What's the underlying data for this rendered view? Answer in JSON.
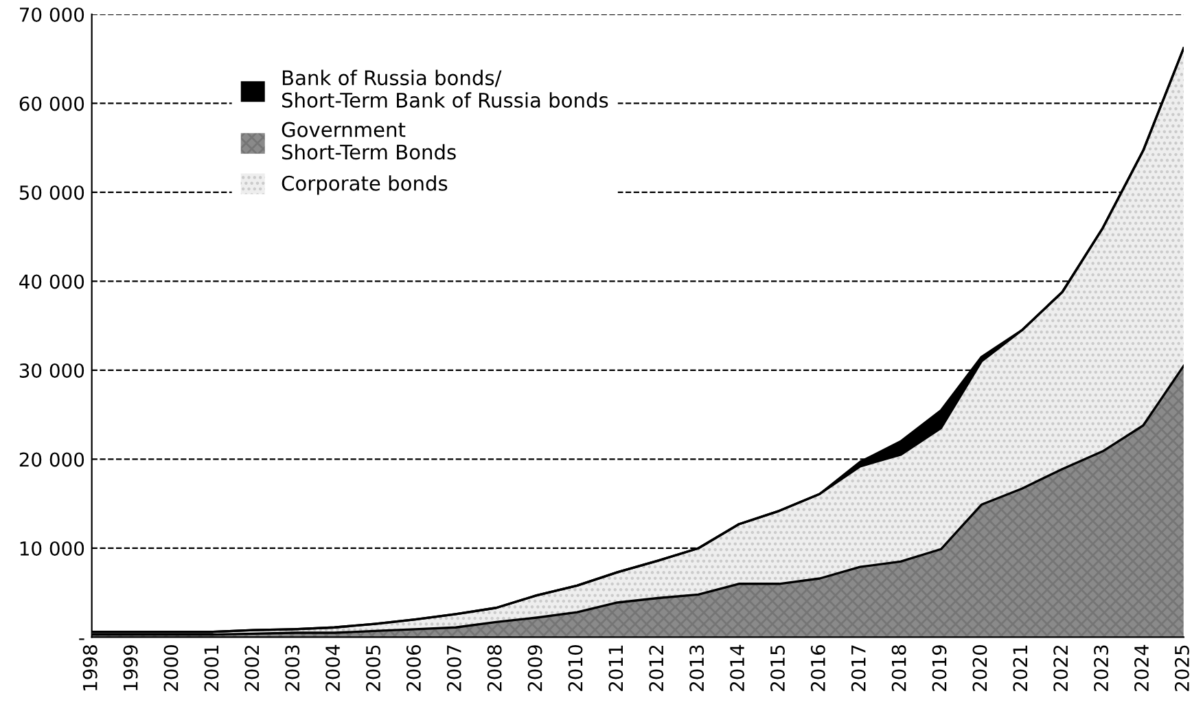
{
  "chart_data": {
    "type": "area",
    "stacked": true,
    "x": [
      1998,
      1999,
      2000,
      2001,
      2002,
      2003,
      2004,
      2005,
      2006,
      2007,
      2008,
      2009,
      2010,
      2011,
      2012,
      2013,
      2014,
      2015,
      2016,
      2017,
      2018,
      2019,
      2020,
      2021,
      2022,
      2023,
      2024,
      2025
    ],
    "series": [
      {
        "name": "Government\nShort-Term Bonds",
        "color": "#8a8a8a",
        "values": [
          300,
          300,
          300,
          300,
          400,
          500,
          500,
          700,
          900,
          1100,
          1700,
          2200,
          2800,
          3900,
          4400,
          4800,
          6000,
          6000,
          6600,
          7900,
          8500,
          9900,
          14900,
          16700,
          18900,
          20900,
          23800,
          30500
        ]
      },
      {
        "name": "Corporate bonds",
        "color": "#eeeeee",
        "values": [
          300,
          300,
          300,
          300,
          400,
          400,
          600,
          800,
          1100,
          1500,
          1600,
          2500,
          3000,
          3400,
          4200,
          5200,
          6700,
          8200,
          9500,
          11300,
          12000,
          13600,
          16100,
          17800,
          19900,
          25100,
          30900,
          35700
        ]
      },
      {
        "name": "Bank of Russia bonds/\nShort-Term Bank of Russia bonds",
        "color": "#000000",
        "values": [
          0,
          0,
          0,
          0,
          0,
          0,
          0,
          0,
          0,
          0,
          0,
          0,
          0,
          0,
          0,
          0,
          0,
          0,
          0,
          500,
          1500,
          2000,
          500,
          0,
          0,
          0,
          0,
          0
        ]
      }
    ],
    "xlim": [
      1998,
      2025
    ],
    "xticks": [
      1998,
      1999,
      2000,
      2001,
      2002,
      2003,
      2004,
      2005,
      2006,
      2007,
      2008,
      2009,
      2010,
      2011,
      2012,
      2013,
      2014,
      2015,
      2016,
      2017,
      2018,
      2019,
      2020,
      2021,
      2022,
      2023,
      2024,
      2025
    ],
    "ylim": [
      0,
      70000
    ],
    "yticks": [
      {
        "value": 0,
        "label": "-"
      },
      {
        "value": 10000,
        "label": "10 000"
      },
      {
        "value": 20000,
        "label": "20 000"
      },
      {
        "value": 30000,
        "label": "30 000"
      },
      {
        "value": 40000,
        "label": "40 000"
      },
      {
        "value": 50000,
        "label": "50 000"
      },
      {
        "value": 60000,
        "label": "60 000"
      },
      {
        "value": 70000,
        "label": "70 000"
      }
    ],
    "grid": "y",
    "line_style": "dashed",
    "legend": "top left"
  }
}
